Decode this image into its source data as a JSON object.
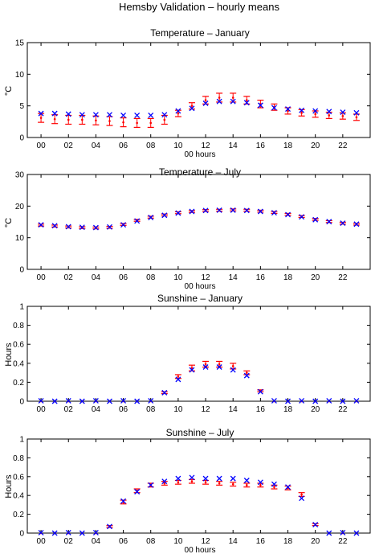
{
  "figure_title": "Hemsby Validation – hourly means",
  "colors": {
    "model": "#ff0000",
    "obs": "#0000ff",
    "axis": "#000000"
  },
  "chart_data": [
    {
      "type": "scatter",
      "title": "Temperature – January",
      "xlabel": "00 hours",
      "ylabel": "°C",
      "xlim": [
        -1,
        24
      ],
      "ylim": [
        0,
        15
      ],
      "x_ticks": [
        "00",
        "02",
        "04",
        "06",
        "08",
        "10",
        "12",
        "14",
        "16",
        "18",
        "20",
        "22"
      ],
      "y_ticks": [
        "0",
        "5",
        "10",
        "15"
      ],
      "grid": false,
      "hours": [
        0,
        1,
        2,
        3,
        4,
        5,
        6,
        7,
        8,
        9,
        10,
        11,
        12,
        13,
        14,
        15,
        16,
        17,
        18,
        19,
        20,
        21,
        22,
        23
      ],
      "series": [
        {
          "marker": "errorbar",
          "color": "#ff0000",
          "values": [
            3.1,
            2.9,
            2.8,
            2.8,
            2.7,
            2.6,
            2.4,
            2.3,
            2.3,
            2.8,
            3.8,
            5.0,
            5.9,
            6.3,
            6.3,
            5.9,
            5.3,
            4.8,
            4.2,
            3.9,
            3.7,
            3.5,
            3.4,
            3.2
          ],
          "errors": [
            0.7,
            0.7,
            0.7,
            0.7,
            0.7,
            0.7,
            0.7,
            0.7,
            0.7,
            0.7,
            0.5,
            0.5,
            0.6,
            0.7,
            0.7,
            0.6,
            0.6,
            0.5,
            0.5,
            0.5,
            0.5,
            0.5,
            0.5,
            0.5
          ]
        },
        {
          "marker": "x",
          "color": "#0000ff",
          "values": [
            3.8,
            3.8,
            3.7,
            3.6,
            3.6,
            3.6,
            3.5,
            3.5,
            3.5,
            3.6,
            4.2,
            4.6,
            5.4,
            5.7,
            5.7,
            5.5,
            5.1,
            4.7,
            4.5,
            4.3,
            4.2,
            4.1,
            4.0,
            3.9
          ]
        }
      ]
    },
    {
      "type": "scatter",
      "title": "Temperature – July",
      "xlabel": "00 hours",
      "ylabel": "°C",
      "xlim": [
        -1,
        24
      ],
      "ylim": [
        0,
        30
      ],
      "x_ticks": [
        "00",
        "02",
        "04",
        "06",
        "08",
        "10",
        "12",
        "14",
        "16",
        "18",
        "20",
        "22"
      ],
      "y_ticks": [
        "0",
        "10",
        "20",
        "30"
      ],
      "grid": false,
      "hours": [
        0,
        1,
        2,
        3,
        4,
        5,
        6,
        7,
        8,
        9,
        10,
        11,
        12,
        13,
        14,
        15,
        16,
        17,
        18,
        19,
        20,
        21,
        22,
        23
      ],
      "series": [
        {
          "marker": "errorbar",
          "color": "#ff0000",
          "values": [
            14.0,
            13.7,
            13.4,
            13.2,
            13.1,
            13.3,
            14.2,
            15.5,
            16.5,
            17.2,
            17.9,
            18.3,
            18.6,
            18.7,
            18.8,
            18.7,
            18.4,
            18.0,
            17.4,
            16.7,
            15.8,
            15.1,
            14.6,
            14.3
          ],
          "errors": [
            0.3,
            0.3,
            0.3,
            0.3,
            0.3,
            0.3,
            0.3,
            0.3,
            0.3,
            0.3,
            0.3,
            0.3,
            0.3,
            0.3,
            0.3,
            0.3,
            0.3,
            0.3,
            0.3,
            0.3,
            0.3,
            0.3,
            0.3,
            0.3
          ]
        },
        {
          "marker": "x",
          "color": "#0000ff",
          "values": [
            14.1,
            13.8,
            13.5,
            13.3,
            13.2,
            13.4,
            14.1,
            15.3,
            16.4,
            17.1,
            17.8,
            18.3,
            18.6,
            18.7,
            18.7,
            18.6,
            18.3,
            17.9,
            17.3,
            16.6,
            15.7,
            15.1,
            14.6,
            14.3
          ]
        }
      ]
    },
    {
      "type": "scatter",
      "title": "Sunshine – January",
      "xlabel": "",
      "ylabel": "Hours",
      "xlim": [
        -1,
        24
      ],
      "ylim": [
        0,
        1
      ],
      "x_ticks": [
        "00",
        "02",
        "04",
        "06",
        "08",
        "10",
        "12",
        "14",
        "16",
        "18",
        "20",
        "22"
      ],
      "y_ticks": [
        "0",
        "0.2",
        "0.4",
        "0.6",
        "0.8",
        "1"
      ],
      "grid": false,
      "hours": [
        0,
        1,
        2,
        3,
        4,
        5,
        6,
        7,
        8,
        9,
        10,
        11,
        12,
        13,
        14,
        15,
        16,
        17,
        18,
        19,
        20,
        21,
        22,
        23
      ],
      "series": [
        {
          "marker": "errorbar",
          "color": "#ff0000",
          "values": [
            0,
            0,
            0,
            0,
            0,
            0,
            0,
            0,
            0,
            0.09,
            0.26,
            0.35,
            0.39,
            0.39,
            0.37,
            0.3,
            0.11,
            0,
            0,
            0,
            0,
            0,
            0,
            0
          ],
          "errors": [
            0,
            0,
            0,
            0,
            0,
            0,
            0,
            0,
            0,
            0.01,
            0.02,
            0.03,
            0.03,
            0.03,
            0.03,
            0.02,
            0.01,
            0,
            0,
            0,
            0,
            0,
            0,
            0
          ]
        },
        {
          "marker": "x",
          "color": "#0000ff",
          "values": [
            0.005,
            0,
            0.005,
            0,
            0.005,
            0,
            0.005,
            0,
            0.005,
            0.09,
            0.23,
            0.33,
            0.36,
            0.36,
            0.33,
            0.27,
            0.1,
            0.005,
            0,
            0.005,
            0,
            0.005,
            0,
            0.005
          ]
        }
      ]
    },
    {
      "type": "scatter",
      "title": "Sunshine – July",
      "xlabel": "00 hours",
      "ylabel": "Hours",
      "xlim": [
        -1,
        24
      ],
      "ylim": [
        0,
        1
      ],
      "x_ticks": [
        "00",
        "02",
        "04",
        "06",
        "08",
        "10",
        "12",
        "14",
        "16",
        "18",
        "20",
        "22"
      ],
      "y_ticks": [
        "0",
        "0.2",
        "0.4",
        "0.6",
        "0.8",
        "1"
      ],
      "grid": false,
      "hours": [
        0,
        1,
        2,
        3,
        4,
        5,
        6,
        7,
        8,
        9,
        10,
        11,
        12,
        13,
        14,
        15,
        16,
        17,
        18,
        19,
        20,
        21,
        22,
        23
      ],
      "series": [
        {
          "marker": "errorbar",
          "color": "#ff0000",
          "values": [
            0,
            0,
            0,
            0,
            0,
            0.07,
            0.33,
            0.45,
            0.51,
            0.53,
            0.54,
            0.55,
            0.54,
            0.53,
            0.52,
            0.51,
            0.51,
            0.49,
            0.48,
            0.41,
            0.09,
            0,
            0,
            0
          ],
          "errors": [
            0,
            0,
            0,
            0,
            0,
            0.01,
            0.02,
            0.02,
            0.02,
            0.02,
            0.02,
            0.02,
            0.02,
            0.02,
            0.02,
            0.02,
            0.02,
            0.02,
            0.02,
            0.02,
            0.01,
            0,
            0,
            0
          ]
        },
        {
          "marker": "x",
          "color": "#0000ff",
          "values": [
            0.005,
            0,
            0.005,
            0,
            0.005,
            0.07,
            0.34,
            0.44,
            0.51,
            0.55,
            0.58,
            0.59,
            0.58,
            0.58,
            0.58,
            0.56,
            0.54,
            0.52,
            0.49,
            0.37,
            0.09,
            0,
            0.005,
            0
          ]
        }
      ]
    }
  ]
}
